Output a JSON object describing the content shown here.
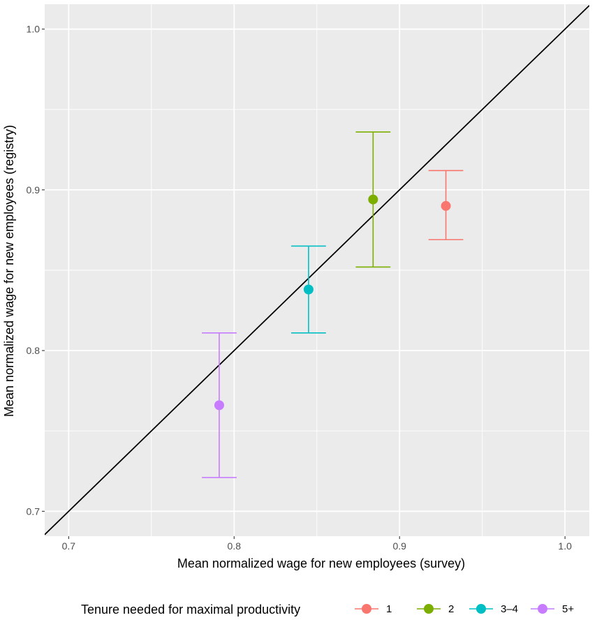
{
  "chart_data": {
    "type": "scatter",
    "title": "",
    "xlabel": "Mean normalized wage for new employees (survey)",
    "ylabel": "Mean normalized wage for new employees (registry)",
    "xlim": [
      0.6855,
      1.0147
    ],
    "ylim": [
      0.6845,
      1.0155
    ],
    "x_ticks": [
      0.7,
      0.8,
      0.9,
      1.0
    ],
    "x_tick_labels": [
      "0.7",
      "0.8",
      "0.9",
      "1.0"
    ],
    "y_ticks": [
      0.7,
      0.8,
      0.9,
      1.0
    ],
    "y_tick_labels": [
      "0.7",
      "0.8",
      "0.9",
      "1.0"
    ],
    "grid": true,
    "reference_line": "y = x",
    "legend": {
      "title": "Tenure needed for maximal productivity",
      "placement": "bottom"
    },
    "series": [
      {
        "name": "1",
        "color": "#F8766D",
        "x": 0.928,
        "y": 0.89,
        "ymin": 0.869,
        "ymax": 0.912
      },
      {
        "name": "2",
        "color": "#7CAE00",
        "x": 0.884,
        "y": 0.894,
        "ymin": 0.852,
        "ymax": 0.936
      },
      {
        "name": "3–4",
        "color": "#00BFC4",
        "x": 0.845,
        "y": 0.838,
        "ymin": 0.811,
        "ymax": 0.865
      },
      {
        "name": "5+",
        "color": "#C77CFF",
        "x": 0.791,
        "y": 0.766,
        "ymin": 0.721,
        "ymax": 0.811
      }
    ]
  }
}
